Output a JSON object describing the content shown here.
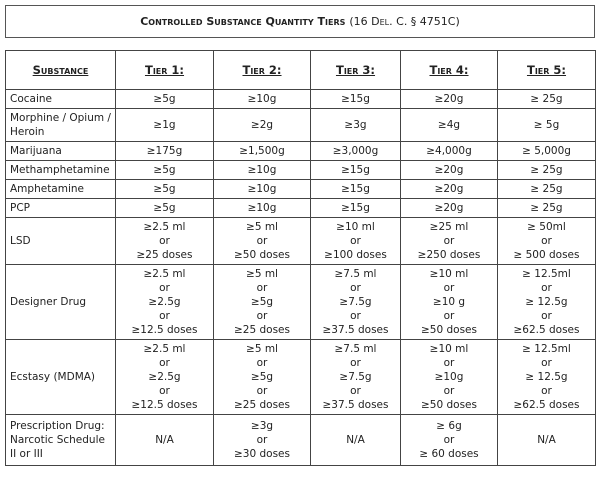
{
  "title": {
    "main": "Controlled Substance Quantity Tiers",
    "citation": "(16 Del. C. § 4751C)"
  },
  "table": {
    "headers": [
      "Substance",
      "Tier 1:",
      "Tier 2:",
      "Tier 3:",
      "Tier 4:",
      "Tier 5:"
    ],
    "rows": [
      [
        "Cocaine",
        [
          "≥5g"
        ],
        [
          "≥10g"
        ],
        [
          "≥15g"
        ],
        [
          "≥20g"
        ],
        [
          "≥ 25g"
        ]
      ],
      [
        "Morphine / Opium / Heroin",
        [
          "≥1g"
        ],
        [
          "≥2g"
        ],
        [
          "≥3g"
        ],
        [
          "≥4g"
        ],
        [
          "≥ 5g"
        ]
      ],
      [
        "Marijuana",
        [
          "≥175g"
        ],
        [
          "≥1,500g"
        ],
        [
          "≥3,000g"
        ],
        [
          "≥4,000g"
        ],
        [
          "≥ 5,000g"
        ]
      ],
      [
        "Methamphetamine",
        [
          "≥5g"
        ],
        [
          "≥10g"
        ],
        [
          "≥15g"
        ],
        [
          "≥20g"
        ],
        [
          "≥ 25g"
        ]
      ],
      [
        "Amphetamine",
        [
          "≥5g"
        ],
        [
          "≥10g"
        ],
        [
          "≥15g"
        ],
        [
          "≥20g"
        ],
        [
          "≥ 25g"
        ]
      ],
      [
        "PCP",
        [
          "≥5g"
        ],
        [
          "≥10g"
        ],
        [
          "≥15g"
        ],
        [
          "≥20g"
        ],
        [
          "≥ 25g"
        ]
      ],
      [
        "LSD",
        [
          "≥2.5 ml",
          "or",
          "≥25 doses"
        ],
        [
          "≥5 ml",
          "or",
          "≥50 doses"
        ],
        [
          "≥10 ml",
          "or",
          "≥100 doses"
        ],
        [
          "≥25 ml",
          "or",
          "≥250 doses"
        ],
        [
          "≥ 50ml",
          "or",
          "≥ 500 doses"
        ]
      ],
      [
        "Designer Drug",
        [
          "≥2.5 ml",
          "or",
          "≥2.5g",
          "or",
          "≥12.5 doses"
        ],
        [
          "≥5 ml",
          "or",
          "≥5g",
          "or",
          "≥25 doses"
        ],
        [
          "≥7.5 ml",
          "or",
          "≥7.5g",
          "or",
          "≥37.5 doses"
        ],
        [
          "≥10 ml",
          "or",
          "≥10 g",
          "or",
          "≥50 doses"
        ],
        [
          "≥ 12.5ml",
          "or",
          "≥ 12.5g",
          "or",
          "≥62.5 doses"
        ]
      ],
      [
        "Ecstasy (MDMA)",
        [
          "≥2.5 ml",
          "or",
          "≥2.5g",
          "or",
          "≥12.5 doses"
        ],
        [
          "≥5 ml",
          "or",
          "≥5g",
          "or",
          "≥25 doses"
        ],
        [
          "≥7.5 ml",
          "or",
          "≥7.5g",
          "or",
          "≥37.5 doses"
        ],
        [
          "≥10 ml",
          "or",
          "≥10g",
          "or",
          "≥50 doses"
        ],
        [
          "≥ 12.5ml",
          "or",
          "≥ 12.5g",
          "or",
          "≥62.5 doses"
        ]
      ],
      [
        "Prescription Drug: Narcotic Schedule II or III",
        [
          "N/A"
        ],
        [
          "≥3g",
          "or",
          "≥30 doses"
        ],
        [
          "N/A"
        ],
        [
          "≥ 6g",
          "or",
          "≥ 60 doses"
        ],
        [
          "N/A"
        ]
      ]
    ]
  }
}
